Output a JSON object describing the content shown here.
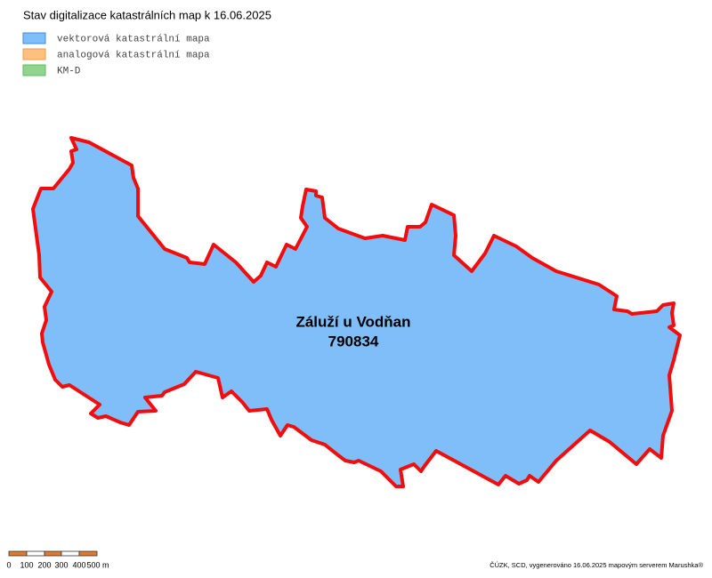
{
  "header": {
    "title": "Stav digitalizace katastrálních map k 16.06.2025"
  },
  "legend": [
    {
      "label": "vektorová katastrální mapa",
      "color": "#7fbef8"
    },
    {
      "label": "analogová katastrální mapa",
      "color": "#fec080"
    },
    {
      "label": "KM-D",
      "color": "#90d490"
    }
  ],
  "area": {
    "name": "Záluží u Vodňan",
    "code": "790834"
  },
  "scale": [
    "0",
    "100",
    "200",
    "300",
    "400",
    "500 m"
  ],
  "footer": "ČÚZK, SCD, vygenerováno 16.06.2025 mapovým serverem Marushka®"
}
